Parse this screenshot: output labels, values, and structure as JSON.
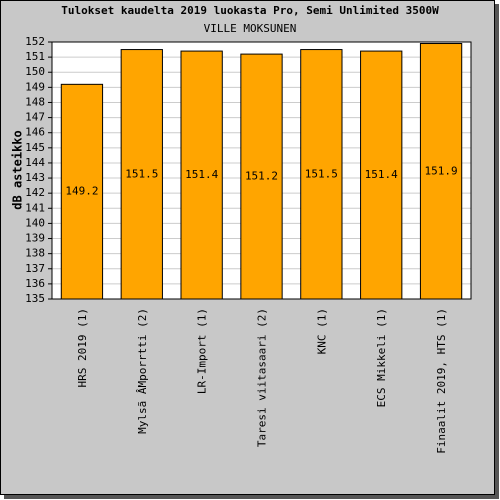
{
  "chart_data": {
    "type": "bar",
    "title": "Tulokset kaudelta 2019 luokasta Pro, Semi Unlimited 3500W",
    "subtitle": "VILLE MOKSUNEN",
    "y_label": "dB asteikko",
    "categories": [
      "HRS 2019 (1)",
      "Mylsã ÂMporrtti (2)",
      "LR-Import (1)",
      "Taresi viitasaari (2)",
      "KNC (1)",
      "ECS Mikkeli (1)",
      "Finaalit 2019, HTS (1)"
    ],
    "values": [
      149.2,
      151.5,
      151.4,
      151.2,
      151.5,
      151.4,
      151.9
    ],
    "color": "#ffa500",
    "ylim": [
      135,
      152
    ],
    "yticks": [
      135,
      136,
      137,
      138,
      139,
      140,
      141,
      142,
      143,
      144,
      145,
      146,
      147,
      148,
      149,
      150,
      151,
      152
    ],
    "grid": true
  }
}
